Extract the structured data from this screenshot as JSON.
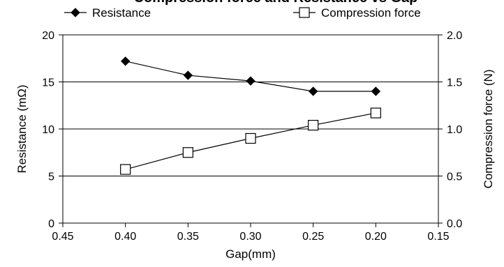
{
  "chart_data": {
    "type": "line",
    "title": "Compression force and Resistance vs Gap",
    "xlabel": "Gap(mm)",
    "ylabel_left": "Resistance (mΩ)",
    "ylabel_right": "Compression force (N)",
    "x_reversed": true,
    "xlim": [
      0.15,
      0.45
    ],
    "ylim_left": [
      0,
      20
    ],
    "ylim_right": [
      0.0,
      2.0
    ],
    "x_ticks": [
      "0.45",
      "0.40",
      "0.35",
      "0.30",
      "0.25",
      "0.20",
      "0.15"
    ],
    "x_tick_values": [
      0.45,
      0.4,
      0.35,
      0.3,
      0.25,
      0.2,
      0.15
    ],
    "y_left_ticks": [
      "0",
      "5",
      "10",
      "15",
      "20"
    ],
    "y_left_tick_values": [
      0,
      5,
      10,
      15,
      20
    ],
    "y_right_ticks": [
      "0.0",
      "0.5",
      "1.0",
      "1.5",
      "2.0"
    ],
    "y_right_tick_values": [
      0.0,
      0.5,
      1.0,
      1.5,
      2.0
    ],
    "gridlines": [
      5,
      10,
      15
    ],
    "legend_position": "top",
    "series": [
      {
        "name": "Resistance",
        "axis": "left",
        "marker": "filled-diamond",
        "color": "#000000",
        "x": [
          0.4,
          0.35,
          0.3,
          0.25,
          0.2
        ],
        "values": [
          17.2,
          15.7,
          15.1,
          14.0,
          14.0
        ]
      },
      {
        "name": "Compression force",
        "axis": "right",
        "marker": "open-square",
        "color": "#000000",
        "x": [
          0.4,
          0.35,
          0.3,
          0.25,
          0.2
        ],
        "values": [
          0.57,
          0.75,
          0.9,
          1.04,
          1.17
        ]
      }
    ]
  }
}
